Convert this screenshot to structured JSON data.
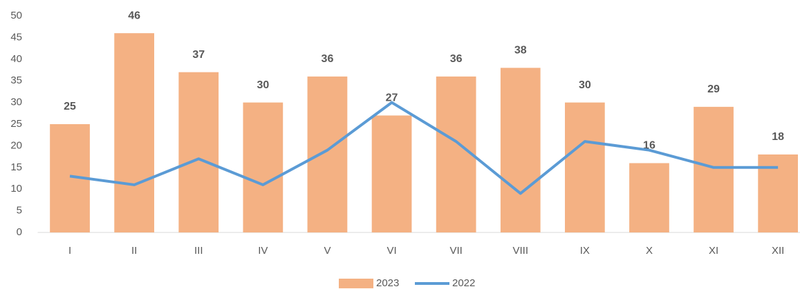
{
  "chart_data": {
    "type": "bar-line",
    "categories": [
      "I",
      "II",
      "III",
      "IV",
      "V",
      "VI",
      "VII",
      "VIII",
      "IX",
      "X",
      "XI",
      "XII"
    ],
    "series": [
      {
        "name": "2023",
        "type": "bar",
        "color": "#f4b183",
        "values": [
          25,
          46,
          37,
          30,
          36,
          27,
          36,
          38,
          30,
          16,
          29,
          18
        ]
      },
      {
        "name": "2022",
        "type": "line",
        "color": "#5b9bd5",
        "values": [
          13,
          11,
          17,
          11,
          19,
          30,
          21,
          9,
          21,
          19,
          15,
          15
        ]
      }
    ],
    "ylim": [
      0,
      50
    ],
    "yticks": [
      0,
      5,
      10,
      15,
      20,
      25,
      30,
      35,
      40,
      45,
      50
    ],
    "grid": false,
    "legend": "bottom"
  }
}
